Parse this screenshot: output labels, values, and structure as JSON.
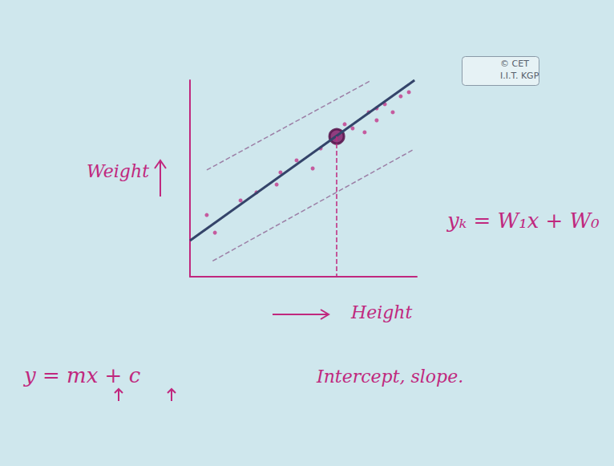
{
  "chart_data": {
    "type": "scatter",
    "x_label": "Height",
    "y_label": "Weight",
    "xlim": [
      0,
      10
    ],
    "ylim": [
      0,
      10
    ],
    "xticks": [],
    "yticks": [],
    "tick_labels": false,
    "grid": false,
    "series": [
      {
        "type": "scatter",
        "color": "#c2378a",
        "marker": "circle",
        "x": [
          0.74,
          1.1,
          2.23,
          2.93,
          3.99,
          3.82,
          4.7,
          5.41,
          5.76,
          6.82,
          7.17,
          7.7,
          7.88,
          8.23,
          8.59,
          8.94,
          9.29,
          9.65,
          8.23
        ],
        "values": [
          3.14,
          2.24,
          3.88,
          4.29,
          5.31,
          4.69,
          5.92,
          5.51,
          6.53,
          7.76,
          7.55,
          7.35,
          8.37,
          7.96,
          8.78,
          8.37,
          9.18,
          9.39,
          8.57
        ]
      },
      {
        "type": "line",
        "color": "#34446a",
        "line_style": "solid",
        "x": [
          0,
          9.9
        ],
        "values": [
          1.84,
          10
        ]
      },
      {
        "type": "line",
        "color": "#9c7fa6",
        "line_style": "dashed",
        "x": [
          0.74,
          8.0
        ],
        "values": [
          5.43,
          10
        ]
      },
      {
        "type": "line",
        "color": "#9c7fa6",
        "line_style": "dashed",
        "x": [
          1.0,
          9.9
        ],
        "values": [
          0.8,
          6.5
        ]
      },
      {
        "type": "scatter",
        "color": "#8a2a72",
        "marker": "circled",
        "x": [
          6.47
        ],
        "values": [
          7.14
        ]
      }
    ],
    "annotations": [
      "yₖ = W₁x + W₀",
      "y = mx + c",
      "Intercept, slope.",
      "© CET",
      "I.I.T. KGP"
    ]
  }
}
